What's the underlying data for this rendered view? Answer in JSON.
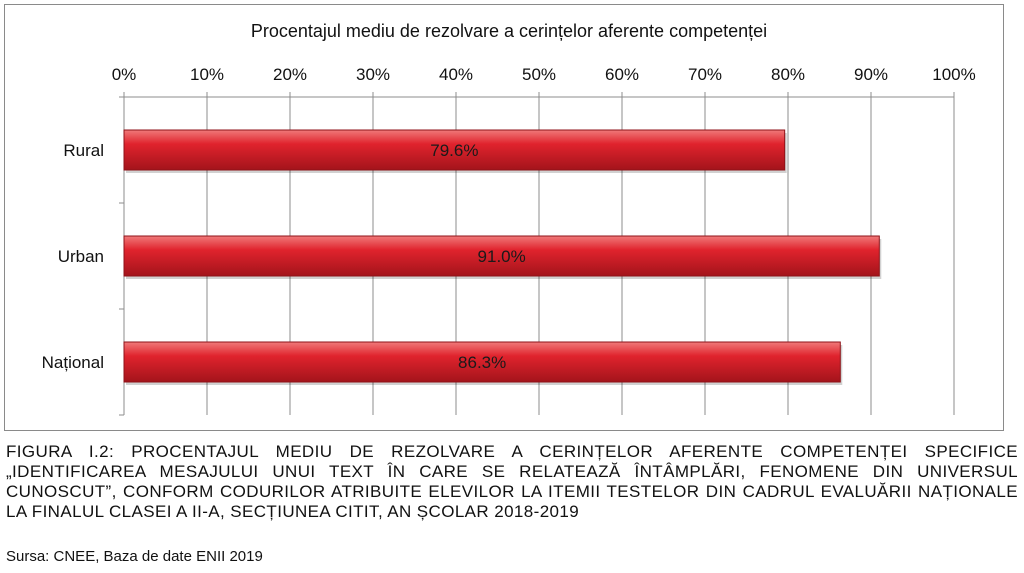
{
  "chart_data": {
    "type": "bar",
    "orientation": "horizontal",
    "title": "Procentajul mediu de rezolvare a cerințelor aferente competenței",
    "categories": [
      "Rural",
      "Urban",
      "Național"
    ],
    "values": [
      79.6,
      91.0,
      86.3
    ],
    "data_labels": [
      "79.6%",
      "91.0%",
      "86.3%"
    ],
    "x_ticks": [
      "0%",
      "10%",
      "20%",
      "30%",
      "40%",
      "50%",
      "60%",
      "70%",
      "80%",
      "90%",
      "100%"
    ],
    "xlim": [
      0,
      100
    ],
    "x_axis_position": "top",
    "grid": true,
    "legend": "none",
    "bar_color": "#e0232d"
  },
  "caption": "FIGURA I.2: Procentajul mediu de rezolvare a cerințelor aferente competenței specifice „Identificarea mesajului unui text în care se relatează întâmplări, fenomene din universul cunoscut”, conform codurilor atribuite elevilor la itemii testelor din cadrul Evaluării Naționale la finalul clasei a II-a, secțiunea Citit, an școlar 2018-2019",
  "source": "Sursa: CNEE, Baza de date ENII 2019"
}
